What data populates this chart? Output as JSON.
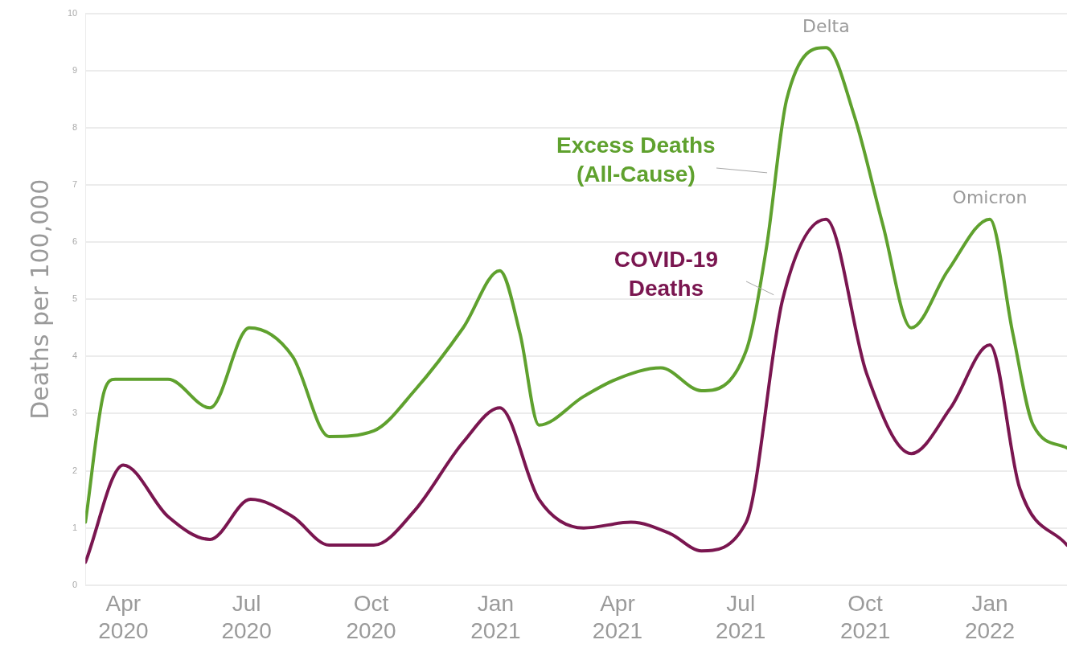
{
  "chart_data": {
    "type": "line",
    "ylabel": "Deaths per 100,000",
    "xlim": [
      "2020-03-04",
      "2022-02-27"
    ],
    "xticks": [
      {
        "value": "2020-04-01",
        "label": "Apr 2020"
      },
      {
        "value": "2020-07-01",
        "label": "Jul 2020"
      },
      {
        "value": "2020-10-01",
        "label": "Oct 2020"
      },
      {
        "value": "2021-01-01",
        "label": "Jan 2021"
      },
      {
        "value": "2021-04-01",
        "label": "Apr 2021"
      },
      {
        "value": "2021-07-01",
        "label": "Jul 2021"
      },
      {
        "value": "2021-10-01",
        "label": "Oct 2021"
      },
      {
        "value": "2022-01-01",
        "label": "Jan 2022"
      }
    ],
    "ylim": [
      0,
      10
    ],
    "yticks": [
      0,
      1,
      2,
      3,
      4,
      5,
      6,
      7,
      8,
      9,
      10
    ],
    "grid": "y",
    "legend": false,
    "marker": "none",
    "line_style": "solid",
    "series": [
      {
        "name": "Excess Deaths (All-Cause)",
        "color": "#5fa12e",
        "x": [
          "2020-03-04",
          "2020-03-18",
          "2020-03-26",
          "2020-05-04",
          "2020-06-04",
          "2020-07-03",
          "2020-08-04",
          "2020-08-31",
          "2020-10-03",
          "2020-11-02",
          "2020-12-08",
          "2021-01-04",
          "2021-01-19",
          "2021-02-02",
          "2021-03-07",
          "2021-03-31",
          "2021-05-03",
          "2021-06-02",
          "2021-07-05",
          "2021-07-20",
          "2021-08-04",
          "2021-09-02",
          "2021-09-23",
          "2021-10-14",
          "2021-11-04",
          "2021-12-01",
          "2022-01-01",
          "2022-01-18",
          "2022-02-02",
          "2022-02-27"
        ],
        "values": [
          1.1,
          3.4,
          3.6,
          3.6,
          3.1,
          4.5,
          4.0,
          2.6,
          2.7,
          3.4,
          4.5,
          5.5,
          4.4,
          2.8,
          3.3,
          3.6,
          3.8,
          3.4,
          4.1,
          5.9,
          8.5,
          9.4,
          8.2,
          6.3,
          4.5,
          5.5,
          6.4,
          4.4,
          2.8,
          2.4
        ]
      },
      {
        "name": "COVID-19 Deaths",
        "color": "#7a1650",
        "x": [
          "2020-03-04",
          "2020-04-01",
          "2020-05-04",
          "2020-06-04",
          "2020-07-04",
          "2020-08-04",
          "2020-08-31",
          "2020-10-03",
          "2020-11-02",
          "2020-12-08",
          "2021-01-04",
          "2021-02-02",
          "2021-03-07",
          "2021-04-11",
          "2021-05-10",
          "2021-06-02",
          "2021-07-05",
          "2021-08-01",
          "2021-09-02",
          "2021-10-02",
          "2021-11-04",
          "2021-12-03",
          "2022-01-01",
          "2022-01-23",
          "2022-02-27"
        ],
        "values": [
          0.4,
          2.1,
          1.2,
          0.8,
          1.5,
          1.2,
          0.7,
          0.7,
          1.3,
          2.5,
          3.1,
          1.5,
          1.0,
          1.1,
          0.9,
          0.6,
          1.1,
          5.0,
          6.4,
          3.7,
          2.3,
          3.1,
          4.2,
          1.7,
          0.7
        ]
      }
    ],
    "annotations": [
      {
        "text": "Delta",
        "x": "2021-09-02",
        "y": 9.4
      },
      {
        "text": "Omicron",
        "x": "2022-01-01",
        "y": 6.4
      }
    ]
  }
}
